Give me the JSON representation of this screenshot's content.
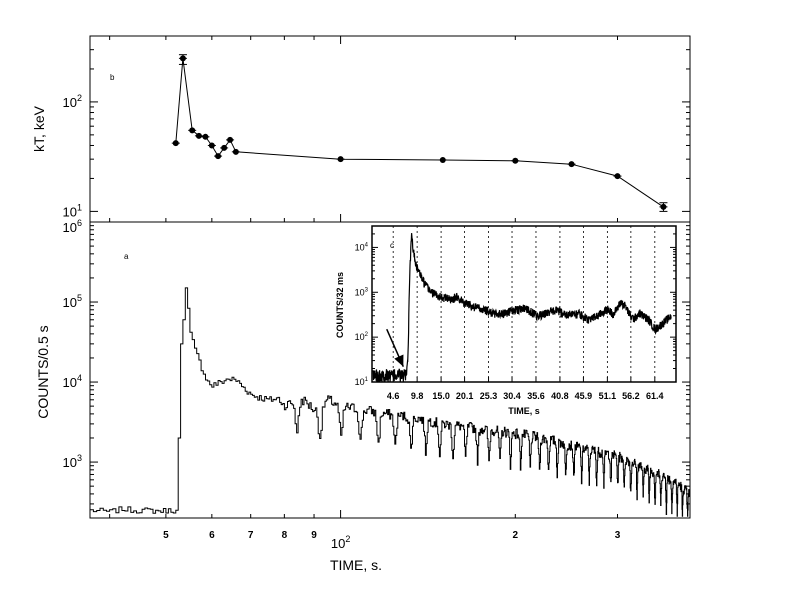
{
  "chart_data": [
    {
      "id": "b",
      "panel_label": "b",
      "type": "scatter",
      "x_scale": "log",
      "y_scale": "log",
      "ylabel": "kT, keV",
      "xlim": [
        37,
        400
      ],
      "ylim": [
        8,
        400
      ],
      "grid": false,
      "legend": "none",
      "y_major_ticks": [
        {
          "value": 10,
          "base": "10",
          "exp": "1"
        },
        {
          "value": 100,
          "base": "10",
          "exp": "2"
        }
      ],
      "points": [
        {
          "x": 52,
          "y": 42
        },
        {
          "x": 53.5,
          "y": 250,
          "yerr": [
            220,
            270
          ]
        },
        {
          "x": 55.5,
          "y": 55
        },
        {
          "x": 57,
          "y": 49
        },
        {
          "x": 58.5,
          "y": 48
        },
        {
          "x": 60,
          "y": 40
        },
        {
          "x": 61.5,
          "y": 32
        },
        {
          "x": 63,
          "y": 38
        },
        {
          "x": 64.5,
          "y": 45
        },
        {
          "x": 66,
          "y": 35
        },
        {
          "x": 100,
          "y": 30
        },
        {
          "x": 150,
          "y": 29.5
        },
        {
          "x": 200,
          "y": 29
        },
        {
          "x": 250,
          "y": 27
        },
        {
          "x": 300,
          "y": 21
        },
        {
          "x": 360,
          "y": 11,
          "yerr": [
            10,
            12
          ]
        }
      ]
    },
    {
      "id": "a",
      "panel_label": "a",
      "type": "line",
      "x_scale": "log",
      "y_scale": "log",
      "xlabel": "TIME, s.",
      "ylabel": "COUNTS/0.5 s",
      "xlim": [
        37,
        400
      ],
      "ylim": [
        200,
        1000000
      ],
      "grid": false,
      "legend": "none",
      "x_major_ticks": [
        {
          "value": 100,
          "base": "10",
          "exp": "2"
        }
      ],
      "x_minor_ticks": [
        {
          "value": 50,
          "label": "5"
        },
        {
          "value": 60,
          "label": "6"
        },
        {
          "value": 70,
          "label": "7"
        },
        {
          "value": 80,
          "label": "8"
        },
        {
          "value": 90,
          "label": "9"
        },
        {
          "value": 200,
          "label": "2"
        },
        {
          "value": 300,
          "label": "3"
        }
      ],
      "y_major_ticks": [
        {
          "value": 1000,
          "base": "10",
          "exp": "3"
        },
        {
          "value": 10000,
          "base": "10",
          "exp": "4"
        },
        {
          "value": 100000,
          "base": "10",
          "exp": "5"
        },
        {
          "value": 1000000,
          "base": "10",
          "exp": "6"
        }
      ],
      "series": [
        {
          "style": "step",
          "background_level": 250,
          "onset_x": 52,
          "peak": {
            "x": 54,
            "y": 150000
          },
          "points": [
            [
              37,
              250
            ],
            [
              40,
              240
            ],
            [
              42,
              260
            ],
            [
              44,
              250
            ],
            [
              46,
              250
            ],
            [
              48,
              245
            ],
            [
              51,
              250
            ],
            [
              52,
              250
            ],
            [
              52.5,
              2000
            ],
            [
              53,
              30000
            ],
            [
              53.5,
              60000
            ],
            [
              54,
              150000
            ],
            [
              54.5,
              80000
            ],
            [
              55,
              40000
            ],
            [
              56,
              25000
            ],
            [
              57,
              18000
            ],
            [
              58,
              13000
            ],
            [
              59,
              10000
            ],
            [
              60,
              9000
            ],
            [
              62,
              10000
            ],
            [
              64,
              11000
            ],
            [
              66,
              10500
            ],
            [
              68,
              8500
            ],
            [
              70,
              7000
            ],
            [
              72,
              6500
            ],
            [
              75,
              6000
            ],
            [
              78,
              6200
            ],
            [
              80,
              5000
            ],
            [
              85,
              6500
            ],
            [
              90,
              4500
            ],
            [
              95,
              6000
            ],
            [
              100,
              5000
            ],
            [
              110,
              4500
            ],
            [
              120,
              4000
            ],
            [
              130,
              3700
            ],
            [
              140,
              3400
            ],
            [
              150,
              3000
            ],
            [
              170,
              2700
            ],
            [
              200,
              2300
            ],
            [
              230,
              1900
            ],
            [
              260,
              1500
            ],
            [
              300,
              1200
            ],
            [
              340,
              800
            ],
            [
              380,
              550
            ],
            [
              400,
              400
            ]
          ],
          "pulsation": {
            "start_x": 80,
            "period_s": 8.0,
            "trough_factor": 0.4
          }
        }
      ]
    },
    {
      "id": "c",
      "panel_label": "c",
      "type": "line",
      "x_scale": "linear",
      "y_scale": "log",
      "xlabel": "TIME, s",
      "ylabel": "COUNTS/32 ms",
      "xlim": [
        0,
        66
      ],
      "ylim": [
        10,
        30000
      ],
      "grid": false,
      "legend": "none",
      "vertical_markers": [
        4.6,
        9.8,
        15.0,
        20.1,
        25.3,
        30.4,
        35.6,
        40.8,
        45.9,
        51.1,
        56.2,
        61.4
      ],
      "x_tick_labels": [
        "4.6",
        "9.8",
        "15.0",
        "20.1",
        "25.3",
        "30.4",
        "35.6",
        "40.8",
        "45.9",
        "51.1",
        "56.2",
        "61.4"
      ],
      "y_major_ticks": [
        {
          "value": 10,
          "base": "10",
          "exp": "1"
        },
        {
          "value": 100,
          "base": "10",
          "exp": "2"
        },
        {
          "value": 1000,
          "base": "10",
          "exp": "3"
        },
        {
          "value": 10000,
          "base": "10",
          "exp": "4"
        }
      ],
      "annotation": {
        "type": "arrow",
        "from": {
          "x": 3.2,
          "y": 150
        },
        "to": {
          "x": 6.8,
          "y": 22
        }
      },
      "series": [
        {
          "style": "noisy-line",
          "points": [
            [
              0.2,
              14
            ],
            [
              2,
              15
            ],
            [
              4,
              14
            ],
            [
              6,
              15
            ],
            [
              7.5,
              14
            ],
            [
              7.8,
              30
            ],
            [
              8.2,
              3000
            ],
            [
              8.6,
              20000
            ],
            [
              9,
              8000
            ],
            [
              9.6,
              4000
            ],
            [
              10.5,
              2500
            ],
            [
              11.5,
              1500
            ],
            [
              13,
              1000
            ],
            [
              15,
              800
            ],
            [
              17,
              700
            ],
            [
              18.5,
              800
            ],
            [
              20,
              600
            ],
            [
              23,
              450
            ],
            [
              26,
              350
            ],
            [
              28,
              330
            ],
            [
              30,
              380
            ],
            [
              33,
              450
            ],
            [
              36,
              300
            ],
            [
              38,
              350
            ],
            [
              40,
              400
            ],
            [
              42,
              320
            ],
            [
              45,
              330
            ],
            [
              47,
              250
            ],
            [
              49,
              300
            ],
            [
              51,
              420
            ],
            [
              52.5,
              330
            ],
            [
              54,
              600
            ],
            [
              55,
              500
            ],
            [
              56.2,
              280
            ],
            [
              57,
              260
            ],
            [
              58,
              350
            ],
            [
              60,
              250
            ],
            [
              61.5,
              150
            ],
            [
              63,
              200
            ],
            [
              65,
              300
            ]
          ]
        }
      ]
    }
  ]
}
